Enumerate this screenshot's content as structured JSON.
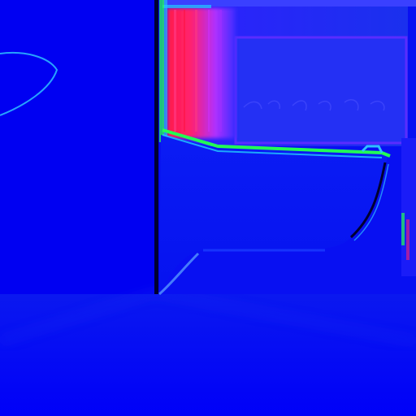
{
  "image": {
    "kind": "surface-normal-map",
    "subject": "bathroom-with-bathtub",
    "colors": {
      "base": "#0000f6",
      "left_wall": "#0000f2",
      "floor": "#0a14f0",
      "back_wall": "#1a2cf0",
      "tub_body": "#0c18f2",
      "hot_face": "#ff1f5a",
      "magenta_face": "#c02cff",
      "edge_green": "#22ff55",
      "edge_cyan": "#22ccff",
      "edge_dark": "#000030",
      "wall_highlight": "#2ec0ff"
    }
  }
}
